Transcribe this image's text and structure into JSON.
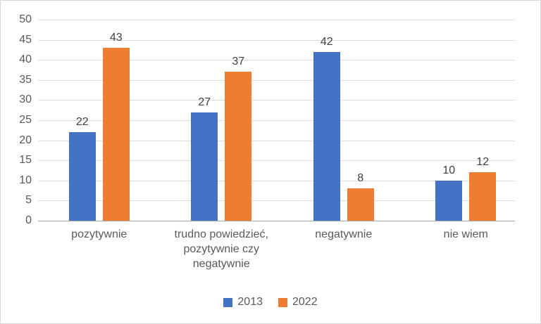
{
  "chart_data": {
    "type": "bar",
    "title": "",
    "categories": [
      "pozytywnie",
      "trudno powiedzieć,\npozytywnie czy\nnegatywnie",
      "negatywnie",
      "nie wiem"
    ],
    "series": [
      {
        "name": "2013",
        "color": "#4472C4",
        "values": [
          22,
          27,
          42,
          10
        ]
      },
      {
        "name": "2022",
        "color": "#ED7D31",
        "values": [
          43,
          37,
          8,
          12
        ]
      }
    ],
    "ylim": [
      0,
      50
    ],
    "yticks": [
      0,
      5,
      10,
      15,
      20,
      25,
      30,
      35,
      40,
      45,
      50
    ],
    "grid": true,
    "legend_position": "bottom",
    "colors": {
      "background": "#FFFFFF",
      "border": "#D9D9D9",
      "gridline": "#DCDCDC",
      "axis_line": "#A6A6A6",
      "axis_text": "#595959",
      "value_label_text": "#404040"
    }
  }
}
